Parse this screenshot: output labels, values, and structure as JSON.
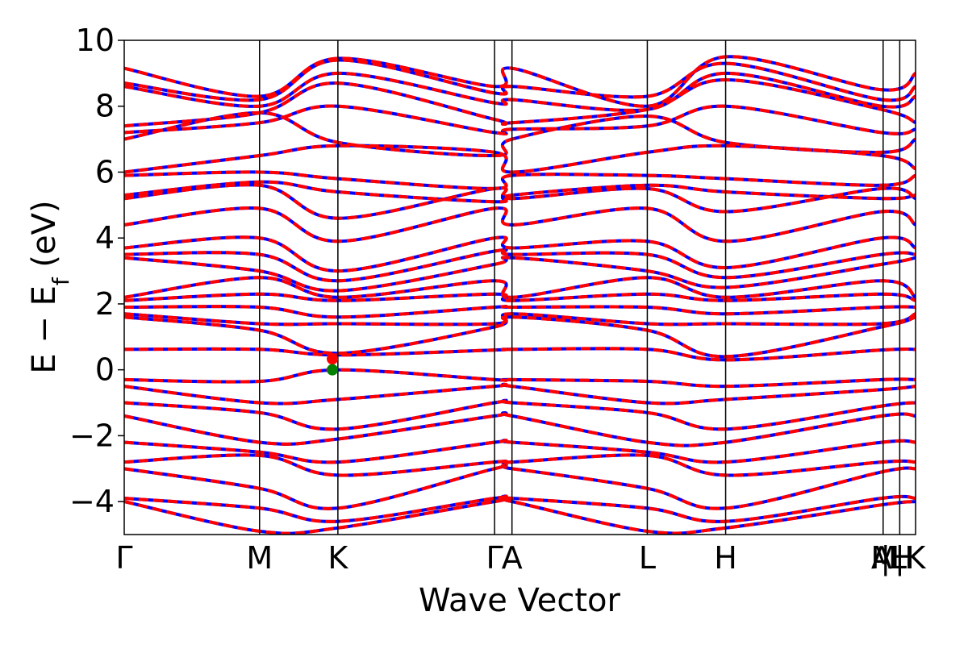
{
  "chart_data": {
    "type": "line",
    "title": "",
    "xlabel": "Wave Vector",
    "ylabel": {
      "prefix": "E − E",
      "subscript": "f",
      "suffix": " (eV)"
    },
    "ylim": [
      -5,
      10
    ],
    "yticks": [
      -4,
      -2,
      0,
      2,
      4,
      6,
      8,
      10
    ],
    "ytick_labels": [
      "−4",
      "−2",
      "0",
      "2",
      "4",
      "6",
      "8",
      "10"
    ],
    "xlim": [
      0,
      1
    ],
    "kpoints": [
      {
        "label": "Γ",
        "x": 0.0
      },
      {
        "label": "M",
        "x": 0.171
      },
      {
        "label": "K",
        "x": 0.27
      },
      {
        "label": "Γ",
        "x": 0.468
      },
      {
        "label": "A",
        "x": 0.49
      },
      {
        "label": "L",
        "x": 0.661
      },
      {
        "label": "H",
        "x": 0.76
      },
      {
        "label": "A",
        "x": 0.957
      },
      {
        "label": "M",
        "x": 0.96
      },
      {
        "label": "|",
        "x": 0.962
      },
      {
        "label": "L",
        "x": 0.978
      },
      {
        "label": "|",
        "x": 0.98
      },
      {
        "label": "H",
        "x": 0.983
      },
      {
        "label": "K",
        "x": 1.0
      }
    ],
    "vlines_x": [
      0.171,
      0.27,
      0.468,
      0.49,
      0.661,
      0.76,
      0.959,
      0.98
    ],
    "markers": [
      {
        "x": 0.263,
        "y": 0.33,
        "color": "#ff0000"
      },
      {
        "x": 0.263,
        "y": 0.0,
        "color": "#008000"
      }
    ],
    "colors": {
      "series_a": "#0000ff",
      "series_b": "#ff0000",
      "marker_cbm": "#ff0000",
      "marker_vbm": "#008000",
      "axes": "#000000"
    },
    "series": [
      {
        "style": "solid",
        "color": "#0000ff",
        "lines": [
          {
            "y": [
              9.15,
              8.3,
              9.45,
              8.6,
              9.15,
              8.0,
              9.5,
              8.5,
              9.0
            ]
          },
          {
            "y": [
              8.7,
              8.2,
              9.4,
              8.4,
              8.6,
              8.3,
              9.3,
              8.2,
              8.6
            ]
          },
          {
            "y": [
              8.6,
              8.0,
              9.0,
              8.1,
              8.2,
              7.9,
              9.0,
              8.0,
              8.3
            ]
          },
          {
            "y": [
              7.4,
              7.8,
              8.7,
              7.6,
              7.5,
              7.9,
              8.8,
              7.9,
              7.5
            ]
          },
          {
            "y": [
              7.2,
              7.5,
              8.0,
              7.2,
              7.3,
              7.4,
              8.0,
              7.2,
              7.3
            ]
          },
          {
            "y": [
              7.0,
              7.8,
              6.9,
              6.5,
              7.0,
              7.7,
              6.9,
              6.6,
              7.0
            ]
          },
          {
            "y": [
              6.0,
              6.5,
              6.8,
              6.6,
              6.0,
              6.6,
              6.8,
              6.5,
              6.1
            ]
          },
          {
            "y": [
              5.9,
              6.0,
              5.8,
              5.5,
              5.9,
              5.9,
              5.8,
              5.6,
              5.9
            ]
          },
          {
            "y": [
              5.3,
              5.7,
              5.4,
              5.1,
              5.3,
              5.6,
              5.4,
              5.2,
              5.3
            ]
          },
          {
            "y": [
              5.2,
              5.6,
              4.6,
              5.5,
              5.2,
              5.5,
              4.8,
              5.5,
              5.2
            ]
          },
          {
            "y": [
              4.4,
              4.9,
              3.9,
              4.9,
              4.4,
              4.9,
              3.9,
              4.8,
              4.4
            ]
          },
          {
            "y": [
              3.7,
              4.0,
              3.0,
              4.0,
              3.7,
              3.9,
              3.1,
              4.0,
              3.7
            ]
          },
          {
            "y": [
              3.5,
              3.5,
              2.7,
              3.6,
              3.5,
              3.5,
              2.8,
              3.5,
              3.5
            ]
          },
          {
            "y": [
              3.4,
              3.0,
              2.4,
              3.2,
              3.4,
              3.0,
              2.5,
              3.2,
              3.4
            ]
          },
          {
            "y": [
              2.2,
              2.8,
              2.2,
              2.7,
              2.2,
              2.8,
              2.2,
              2.7,
              2.2
            ]
          },
          {
            "y": [
              2.1,
              2.3,
              2.1,
              2.3,
              2.1,
              2.3,
              2.1,
              2.3,
              2.1
            ]
          },
          {
            "y": [
              1.9,
              1.9,
              1.6,
              1.9,
              1.9,
              1.9,
              1.7,
              1.9,
              1.9
            ]
          },
          {
            "y": [
              1.7,
              1.4,
              1.4,
              1.4,
              1.7,
              1.4,
              1.4,
              1.4,
              1.7
            ]
          },
          {
            "y": [
              1.6,
              1.2,
              0.5,
              1.3,
              1.6,
              1.2,
              0.4,
              1.3,
              1.6
            ]
          },
          {
            "y": [
              0.62,
              0.62,
              0.45,
              0.6,
              0.62,
              0.62,
              0.3,
              0.6,
              0.62
            ]
          },
          {
            "y": [
              -0.3,
              -0.35,
              0.0,
              -0.3,
              -0.3,
              -0.35,
              -0.5,
              -0.3,
              -0.3
            ]
          },
          {
            "y": [
              -0.5,
              -1.0,
              -0.9,
              -0.5,
              -0.5,
              -1.0,
              -0.9,
              -0.6,
              -0.5
            ]
          },
          {
            "y": [
              -1.0,
              -1.3,
              -1.8,
              -1.0,
              -1.0,
              -1.3,
              -1.8,
              -1.1,
              -1.0
            ]
          },
          {
            "y": [
              -1.4,
              -2.2,
              -2.1,
              -1.4,
              -1.4,
              -2.2,
              -2.2,
              -1.4,
              -1.4
            ]
          },
          {
            "y": [
              -2.2,
              -2.5,
              -2.8,
              -2.2,
              -2.2,
              -2.5,
              -2.8,
              -2.2,
              -2.2
            ]
          },
          {
            "y": [
              -2.8,
              -2.6,
              -3.2,
              -2.8,
              -2.8,
              -2.6,
              -3.2,
              -2.8,
              -2.8
            ]
          },
          {
            "y": [
              -3.0,
              -3.6,
              -4.2,
              -3.0,
              -3.0,
              -3.6,
              -4.2,
              -3.1,
              -3.0
            ]
          },
          {
            "y": [
              -3.9,
              -4.2,
              -4.6,
              -3.9,
              -3.9,
              -4.2,
              -4.6,
              -3.9,
              -3.9
            ]
          },
          {
            "y": [
              -4.0,
              -4.9,
              -4.8,
              -4.0,
              -4.0,
              -4.9,
              -4.8,
              -4.1,
              -4.0
            ]
          }
        ]
      },
      {
        "style": "dashed",
        "color": "#ff0000",
        "lines": "same as series_a"
      }
    ]
  }
}
